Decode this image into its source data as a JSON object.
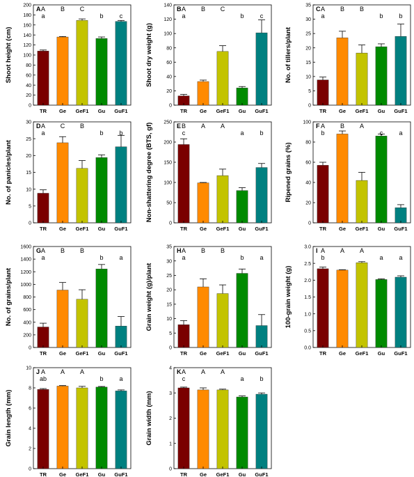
{
  "colors": {
    "TR": "#7a0000",
    "Ge": "#ff8a00",
    "GeF1": "#c3c300",
    "Gu": "#008a00",
    "GuF1": "#008080"
  },
  "chart_data": [
    {
      "panel": "A",
      "type": "bar",
      "categories": [
        "TR",
        "Ge",
        "GeF1",
        "Gu",
        "GuF1"
      ],
      "values": [
        108,
        136,
        169,
        133,
        167
      ],
      "errors": [
        2,
        1,
        3,
        3,
        2
      ],
      "ylabel": "Shoot height (cm)",
      "ylim": [
        0,
        200
      ],
      "yticks": [
        0,
        20,
        40,
        60,
        80,
        100,
        120,
        140,
        160,
        180,
        200
      ],
      "letters_upper": [
        "A",
        "B",
        "C",
        "",
        ""
      ],
      "letters_lower": [
        "a",
        "",
        "",
        "b",
        "c"
      ]
    },
    {
      "panel": "B",
      "type": "bar",
      "categories": [
        "TR",
        "Ge",
        "GeF1",
        "Gu",
        "GuF1"
      ],
      "values": [
        13,
        33,
        75,
        24,
        101
      ],
      "errors": [
        2,
        2,
        8,
        2,
        18
      ],
      "ylabel": "Shoot dry weight (g)",
      "ylim": [
        0,
        140
      ],
      "yticks": [
        0,
        20,
        40,
        60,
        80,
        100,
        120,
        140
      ],
      "letters_upper": [
        "A",
        "B",
        "C",
        "",
        ""
      ],
      "letters_lower": [
        "a",
        "",
        "",
        "b",
        "c"
      ]
    },
    {
      "panel": "C",
      "type": "bar",
      "categories": [
        "TR",
        "Ge",
        "GeF1",
        "Gu",
        "GuF1"
      ],
      "values": [
        8.8,
        23.5,
        18.2,
        20.4,
        24
      ],
      "errors": [
        1,
        2.3,
        2.8,
        1,
        4.3
      ],
      "ylabel": "No. of tillers/plant",
      "ylim": [
        0,
        35
      ],
      "yticks": [
        0,
        5,
        10,
        15,
        20,
        25,
        30,
        35
      ],
      "letters_upper": [
        "A",
        "B",
        "B",
        "",
        ""
      ],
      "letters_lower": [
        "a",
        "",
        "",
        "b",
        "b"
      ]
    },
    {
      "panel": "D",
      "type": "bar",
      "categories": [
        "TR",
        "Ge",
        "GeF1",
        "Gu",
        "GuF1"
      ],
      "values": [
        8.8,
        23.8,
        16.2,
        19.4,
        22.6
      ],
      "errors": [
        1,
        1.8,
        2.3,
        0.8,
        3.4
      ],
      "ylabel": "No. of panicles/plant",
      "ylim": [
        0,
        30
      ],
      "yticks": [
        0,
        5,
        10,
        15,
        20,
        25,
        30
      ],
      "letters_upper": [
        "A",
        "C",
        "B",
        "",
        ""
      ],
      "letters_lower": [
        "a",
        "",
        "",
        "b",
        "b"
      ]
    },
    {
      "panel": "E",
      "type": "bar",
      "categories": [
        "TR",
        "Ge",
        "GeF1",
        "Gu",
        "GuF1"
      ],
      "values": [
        194,
        99,
        117,
        80,
        137
      ],
      "errors": [
        14,
        1,
        16,
        7,
        10
      ],
      "ylabel": "Non-shattering degree (BTS, gf)",
      "ylim": [
        0,
        250
      ],
      "yticks": [
        0,
        50,
        100,
        150,
        200,
        250
      ],
      "letters_upper": [
        "B",
        "A",
        "A",
        "",
        ""
      ],
      "letters_lower": [
        "c",
        "",
        "",
        "a",
        "b"
      ]
    },
    {
      "panel": "F",
      "type": "bar",
      "categories": [
        "TR",
        "Ge",
        "GeF1",
        "Gu",
        "GuF1"
      ],
      "values": [
        57,
        88,
        42,
        86,
        15
      ],
      "errors": [
        3,
        3,
        8,
        2,
        3
      ],
      "ylabel": "Ripened grains (%)",
      "ylim": [
        0,
        100
      ],
      "yticks": [
        0,
        20,
        40,
        60,
        80,
        100
      ],
      "letters_upper": [
        "A",
        "B",
        "A",
        "",
        ""
      ],
      "letters_lower": [
        "b",
        "",
        "",
        "c",
        "a"
      ]
    },
    {
      "panel": "G",
      "type": "bar",
      "categories": [
        "TR",
        "Ge",
        "GeF1",
        "Gu",
        "GuF1"
      ],
      "values": [
        325,
        910,
        765,
        1245,
        340
      ],
      "errors": [
        60,
        120,
        150,
        70,
        150
      ],
      "ylabel": "No. of grains/plant",
      "ylim": [
        0,
        1600
      ],
      "yticks": [
        0,
        200,
        400,
        600,
        800,
        1000,
        1200,
        1400,
        1600
      ],
      "letters_upper": [
        "A",
        "B",
        "B",
        "",
        ""
      ],
      "letters_lower": [
        "a",
        "",
        "",
        "b",
        "a"
      ]
    },
    {
      "panel": "H",
      "type": "bar",
      "categories": [
        "TR",
        "Ge",
        "GeF1",
        "Gu",
        "GuF1"
      ],
      "values": [
        7.9,
        21,
        18.7,
        25.7,
        7.6
      ],
      "errors": [
        1.4,
        2.8,
        3,
        1.5,
        3.8
      ],
      "ylabel": "Grain weight (g)/plant",
      "ylim": [
        0,
        35
      ],
      "yticks": [
        0,
        5,
        10,
        15,
        20,
        25,
        30,
        35
      ],
      "letters_upper": [
        "A",
        "B",
        "B",
        "",
        ""
      ],
      "letters_lower": [
        "a",
        "",
        "",
        "b",
        "a"
      ]
    },
    {
      "panel": "I",
      "type": "bar",
      "categories": [
        "TR",
        "Ge",
        "GeF1",
        "Gu",
        "GuF1"
      ],
      "values": [
        2.34,
        2.3,
        2.52,
        2.02,
        2.09
      ],
      "errors": [
        0.05,
        0.01,
        0.03,
        0.02,
        0.04
      ],
      "ylabel": "100-grain weight (g)",
      "ylim": [
        0,
        3.0
      ],
      "yticks": [
        "0.0",
        "0.5",
        "1.0",
        "1.5",
        "2.0",
        "2.5",
        "3.0"
      ],
      "letters_upper": [
        "A",
        "A",
        "A",
        "",
        ""
      ],
      "letters_lower": [
        "b",
        "",
        "",
        "a",
        "a"
      ]
    },
    {
      "panel": "J",
      "type": "bar",
      "categories": [
        "TR",
        "Ge",
        "GeF1",
        "Gu",
        "GuF1"
      ],
      "values": [
        7.85,
        8.18,
        8,
        8.08,
        7.7
      ],
      "errors": [
        0.08,
        0.05,
        0.15,
        0.06,
        0.1
      ],
      "ylabel": "Grain length (mm)",
      "ylim": [
        0,
        10
      ],
      "yticks": [
        0,
        2,
        4,
        6,
        8,
        10
      ],
      "letters_upper": [
        "A",
        "A",
        "A",
        "",
        ""
      ],
      "letters_lower": [
        "ab",
        "",
        "",
        "b",
        "a"
      ]
    },
    {
      "panel": "K",
      "type": "bar",
      "categories": [
        "TR",
        "Ge",
        "GeF1",
        "Gu",
        "GuF1"
      ],
      "values": [
        3.2,
        3.12,
        3.12,
        2.84,
        2.95
      ],
      "errors": [
        0.03,
        0.08,
        0.03,
        0.04,
        0.05
      ],
      "ylabel": "Grain width (mm)",
      "ylim": [
        0,
        4
      ],
      "yticks": [
        0,
        1,
        2,
        3,
        4
      ],
      "letters_upper": [
        "A",
        "A",
        "A",
        "",
        ""
      ],
      "letters_lower": [
        "c",
        "",
        "",
        "a",
        "b"
      ]
    }
  ]
}
